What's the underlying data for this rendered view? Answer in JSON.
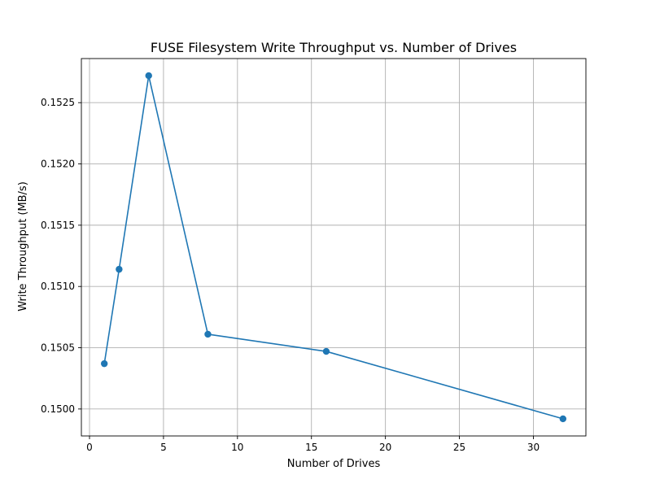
{
  "chart_data": {
    "type": "line",
    "title": "FUSE Filesystem Write Throughput vs. Number of Drives",
    "xlabel": "Number of Drives",
    "ylabel": "Write Throughput (MB/s)",
    "x": [
      1,
      2,
      4,
      8,
      16,
      32
    ],
    "series": [
      {
        "values": [
          0.15037,
          0.15114,
          0.15272,
          0.15061,
          0.15047,
          0.14992
        ],
        "color": "#1f77b4"
      }
    ],
    "xlim": [
      -0.55,
      33.55
    ],
    "ylim": [
      0.14978,
      0.15286
    ],
    "xticks": [
      0,
      5,
      10,
      15,
      20,
      25,
      30
    ],
    "xtick_labels": [
      "0",
      "5",
      "10",
      "15",
      "20",
      "25",
      "30"
    ],
    "yticks": [
      0.15,
      0.1505,
      0.151,
      0.1515,
      0.152,
      0.1525
    ],
    "ytick_labels": [
      "0.1500",
      "0.1505",
      "0.1510",
      "0.1515",
      "0.1520",
      "0.1525"
    ],
    "grid": true,
    "marker": "circle"
  }
}
